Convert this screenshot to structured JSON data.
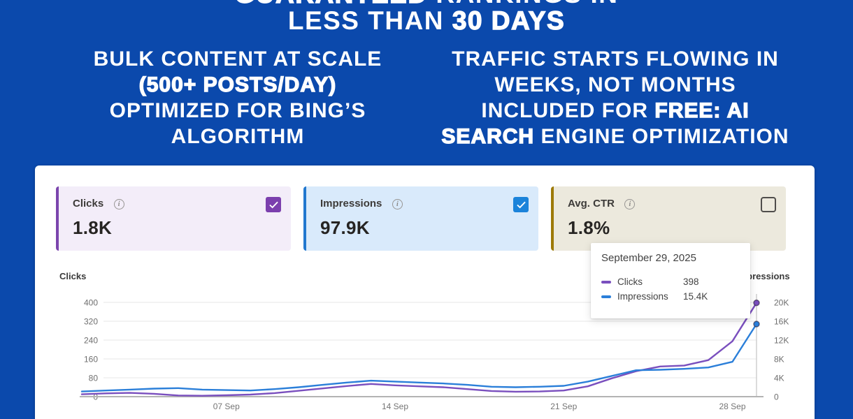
{
  "colors": {
    "background_blue": "#0b49ac",
    "panel_white": "#ffffff",
    "clicks_purple": "#7a4fbe",
    "impressions_blue": "#2b7fd9",
    "clicks_card_bg": "#f3edf9",
    "clicks_card_border": "#7b45ad",
    "impressions_card_bg": "#d9eafb",
    "impressions_card_border": "#2278cf",
    "ctr_card_bg": "#ece9dd",
    "ctr_card_border": "#9d7a08",
    "checkbox_purple": "#7b3fae",
    "checkbox_blue": "#1b83da"
  },
  "hero": {
    "line1_bold": "GUARANTEED ",
    "line1_rest": "RANKINGS IN",
    "line2_rest": "LESS THAN ",
    "line2_bold": "30 DAYS",
    "left_col": {
      "l1": "BULK CONTENT AT SCALE",
      "l2_bold": "(500+ POSTS/DAY)",
      "l3": "OPTIMIZED FOR BING’S",
      "l4": "ALGORITHM"
    },
    "right_col": {
      "r1": "TRAFFIC STARTS FLOWING IN",
      "r2": "WEEKS, NOT MONTHS",
      "r3_rest": "INCLUDED FOR ",
      "r3_bold": "FREE: AI",
      "r4_bold": "SEARCH",
      "r4_rest": " ENGINE OPTIMIZATION"
    }
  },
  "dashboard": {
    "metric_cards": [
      {
        "label": "Clicks",
        "value": "1.8K",
        "checked": true,
        "info_icon": "info-circle"
      },
      {
        "label": "Impressions",
        "value": "97.9K",
        "checked": true,
        "info_icon": "info-circle"
      },
      {
        "label": "Avg. CTR",
        "value": "1.8%",
        "checked": false,
        "info_icon": "info-circle"
      }
    ],
    "tooltip": {
      "date": "September 29, 2025",
      "rows": [
        {
          "label": "Clicks",
          "value": "398",
          "swatch_color": "#7a4fbe"
        },
        {
          "label": "Impressions",
          "value": "15.4K",
          "swatch_color": "#2b7fd9"
        }
      ]
    }
  },
  "chart_data": {
    "type": "line",
    "title": "",
    "x_dates": [
      "Sep 1",
      "Sep 2",
      "Sep 3",
      "Sep 4",
      "Sep 5",
      "Sep 6",
      "Sep 7",
      "Sep 8",
      "Sep 9",
      "Sep 10",
      "Sep 11",
      "Sep 12",
      "Sep 13",
      "Sep 14",
      "Sep 15",
      "Sep 16",
      "Sep 17",
      "Sep 18",
      "Sep 19",
      "Sep 20",
      "Sep 21",
      "Sep 22",
      "Sep 23",
      "Sep 24",
      "Sep 25",
      "Sep 26",
      "Sep 27",
      "Sep 28",
      "Sep 29"
    ],
    "x_ticks": [
      {
        "index": 6,
        "label": "07 Sep"
      },
      {
        "index": 13,
        "label": "14 Sep"
      },
      {
        "index": 20,
        "label": "21 Sep"
      },
      {
        "index": 27,
        "label": "28 Sep"
      }
    ],
    "left_axis": {
      "title": "Clicks",
      "ticks": [
        0,
        80,
        160,
        240,
        320,
        400
      ],
      "max": 400
    },
    "right_axis": {
      "title": "Impressions",
      "tick_labels": [
        "0",
        "4K",
        "8K",
        "12K",
        "16K",
        "20K"
      ],
      "tick_values": [
        0,
        4000,
        8000,
        12000,
        16000,
        20000
      ],
      "max": 20000
    },
    "grid": true,
    "legend_position": "none",
    "series": [
      {
        "name": "Clicks",
        "axis": "left",
        "color": "#7a4fbe",
        "values": [
          10,
          14,
          16,
          12,
          5,
          4,
          6,
          9,
          15,
          25,
          35,
          45,
          54,
          48,
          44,
          40,
          32,
          24,
          21,
          22,
          26,
          44,
          78,
          108,
          128,
          132,
          155,
          235,
          398
        ]
      },
      {
        "name": "Impressions",
        "axis": "right",
        "color": "#2b7fd9",
        "values": [
          1100,
          1300,
          1500,
          1700,
          1800,
          1500,
          1400,
          1300,
          1600,
          2000,
          2500,
          3000,
          3400,
          3200,
          3000,
          2800,
          2500,
          2100,
          2000,
          2100,
          2300,
          3200,
          4400,
          5600,
          5700,
          5900,
          6200,
          7400,
          15400
        ]
      }
    ],
    "hover_point": {
      "index": 28,
      "date": "September 29, 2025",
      "clicks": 398,
      "impressions": "15.4K"
    }
  }
}
